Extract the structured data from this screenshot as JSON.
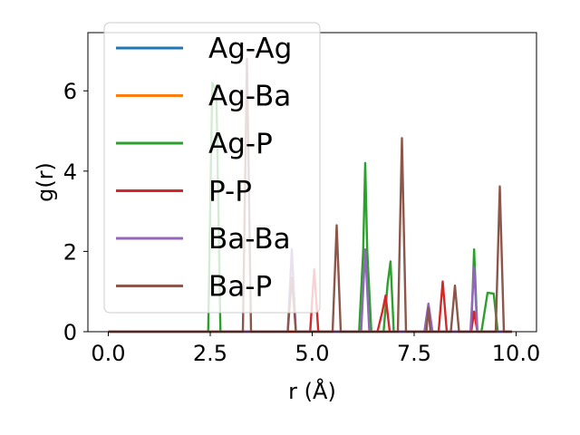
{
  "chart_data": {
    "type": "line",
    "title": "",
    "xlabel": "r (Å)",
    "ylabel": "g(r)",
    "xlim": [
      -0.5,
      10.5
    ],
    "ylim": [
      0,
      7.45
    ],
    "xticks": [
      0.0,
      2.5,
      5.0,
      7.5,
      10.0
    ],
    "xtick_labels": [
      "0.0",
      "2.5",
      "5.0",
      "7.5",
      "10.0"
    ],
    "yticks": [
      0,
      2,
      4,
      6
    ],
    "ytick_labels": [
      "0",
      "2",
      "4",
      "6"
    ],
    "grid": false,
    "legend_position": "upper-left",
    "series": [
      {
        "name": "Ag-Ag",
        "color": "#1f77b4",
        "x": [
          0.0,
          9.9
        ],
        "y": [
          0,
          0
        ]
      },
      {
        "name": "Ag-Ba",
        "color": "#ff7f0e",
        "x": [
          0.0,
          9.9
        ],
        "y": [
          0,
          0
        ]
      },
      {
        "name": "Ag-P",
        "color": "#2ca02c",
        "x": [
          0.0,
          2.45,
          2.55,
          2.65,
          2.75,
          6.15,
          6.25,
          6.3,
          6.35,
          6.45,
          6.75,
          6.85,
          6.92,
          7.0,
          8.9,
          8.97,
          9.05,
          9.15,
          9.3,
          9.45,
          9.55,
          9.9
        ],
        "y": [
          0,
          0,
          6.2,
          6.0,
          0,
          0,
          2.0,
          4.2,
          2.0,
          0,
          0,
          1.2,
          1.75,
          0,
          0,
          2.05,
          0,
          0,
          0.97,
          0.95,
          0,
          0
        ]
      },
      {
        "name": "P-P",
        "color": "#d62728",
        "x": [
          0.0,
          4.95,
          5.05,
          5.15,
          6.6,
          6.72,
          6.8,
          6.9,
          8.1,
          8.2,
          8.3,
          8.9,
          8.97,
          9.05,
          9.9
        ],
        "y": [
          0,
          0,
          1.55,
          0,
          0,
          0.5,
          0.9,
          0,
          0,
          1.25,
          0,
          0,
          0.5,
          0,
          0
        ]
      },
      {
        "name": "Ba-Ba",
        "color": "#9467bd",
        "x": [
          0.0,
          4.4,
          4.5,
          4.6,
          6.2,
          6.3,
          6.4,
          7.75,
          7.85,
          7.95,
          8.88,
          8.97,
          9.05,
          9.9
        ],
        "y": [
          0,
          0,
          2.05,
          0,
          0,
          2.05,
          0,
          0,
          0.7,
          0,
          0,
          1.6,
          0,
          0
        ]
      },
      {
        "name": "Ba-P",
        "color": "#8c564b",
        "x": [
          0.0,
          3.3,
          3.4,
          3.5,
          4.4,
          4.5,
          4.6,
          5.5,
          5.6,
          5.7,
          7.1,
          7.2,
          7.3,
          7.8,
          7.85,
          7.9,
          8.4,
          8.5,
          8.6,
          9.5,
          9.6,
          9.7,
          9.9
        ],
        "y": [
          0,
          0,
          6.8,
          0,
          0,
          1.35,
          0,
          0,
          2.65,
          0,
          0,
          4.82,
          0,
          0,
          0.6,
          0,
          0,
          1.15,
          0,
          0,
          3.62,
          0,
          0
        ]
      }
    ]
  }
}
